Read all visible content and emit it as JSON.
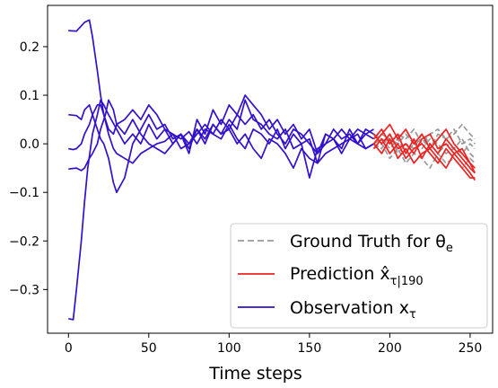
{
  "chart_data": {
    "type": "line",
    "xlabel": "Time steps",
    "ylabel": "",
    "title": "",
    "xlim": [
      -13,
      264
    ],
    "ylim": [
      -0.39,
      0.285
    ],
    "xticks": [
      0,
      50,
      100,
      150,
      200,
      250
    ],
    "yticks": [
      -0.3,
      -0.2,
      -0.1,
      0.0,
      0.1,
      0.2
    ],
    "xtick_labels": [
      "0",
      "50",
      "100",
      "150",
      "200",
      "250"
    ],
    "ytick_labels": [
      "−0.3",
      "−0.2",
      "−0.1",
      "0.0",
      "0.1",
      "0.2"
    ],
    "grid": false,
    "legend_position": "bottom-right",
    "colors": {
      "ground_truth": "#999999",
      "prediction": "#ee2222",
      "observation": "#3311cc"
    },
    "legend": [
      {
        "label": "Ground Truth for θ",
        "sub": "e",
        "style": "dashed",
        "color_key": "ground_truth"
      },
      {
        "label": "Prediction x̂",
        "sub": "τ|190",
        "style": "solid",
        "color_key": "prediction"
      },
      {
        "label": "Observation x",
        "sub": "τ",
        "style": "solid",
        "color_key": "observation"
      }
    ],
    "observation_series": [
      {
        "x": [
          0,
          5,
          10,
          13,
          15,
          18,
          20,
          22,
          25,
          28,
          30,
          35,
          40,
          45,
          50,
          55,
          60,
          65,
          70,
          75,
          80,
          85,
          90,
          95,
          100,
          105,
          110,
          115,
          120,
          125,
          130,
          135,
          140,
          145,
          150,
          155,
          160,
          165,
          170,
          175,
          180,
          185,
          190
        ],
        "y": [
          0.233,
          0.232,
          0.25,
          0.255,
          0.22,
          0.15,
          0.1,
          0.06,
          0.02,
          -0.01,
          -0.02,
          -0.03,
          -0.04,
          -0.02,
          -0.01,
          0.0,
          0.005,
          0.02,
          0.01,
          0.025,
          0.0,
          0.03,
          0.02,
          0.01,
          0.04,
          0.01,
          -0.01,
          0.03,
          0.02,
          0.0,
          0.03,
          -0.01,
          0.02,
          0.0,
          0.01,
          -0.04,
          0.02,
          0.01,
          -0.01,
          0.03,
          0.0,
          0.02,
          0.01
        ]
      },
      {
        "x": [
          0,
          3,
          5,
          8,
          10,
          12,
          15,
          18,
          20,
          22,
          25,
          30,
          35,
          40,
          45,
          50,
          55,
          60,
          65,
          70,
          75,
          80,
          85,
          90,
          95,
          100,
          105,
          110,
          115,
          120,
          125,
          130,
          135,
          140,
          145,
          150,
          155,
          160,
          165,
          170,
          175,
          180,
          185,
          190
        ],
        "y": [
          -0.36,
          -0.362,
          -0.3,
          -0.2,
          -0.12,
          -0.05,
          0.02,
          0.06,
          0.09,
          0.08,
          0.06,
          0.03,
          0.0,
          0.02,
          0.0,
          0.04,
          0.01,
          0.03,
          0.0,
          0.02,
          -0.01,
          0.03,
          0.01,
          0.04,
          0.02,
          0.05,
          0.03,
          0.09,
          0.05,
          0.04,
          0.02,
          0.01,
          0.03,
          -0.01,
          0.0,
          -0.07,
          -0.01,
          0.0,
          0.01,
          -0.02,
          0.01,
          0.02,
          -0.01,
          0.0
        ]
      },
      {
        "x": [
          0,
          5,
          8,
          10,
          13,
          15,
          18,
          20,
          22,
          25,
          28,
          30,
          35,
          40,
          45,
          50,
          55,
          60,
          65,
          70,
          75,
          80,
          85,
          90,
          95,
          100,
          105,
          110,
          115,
          120,
          125,
          130,
          135,
          140,
          145,
          150,
          155,
          160,
          165,
          170,
          175,
          180,
          185,
          190
        ],
        "y": [
          0.06,
          0.058,
          0.05,
          0.07,
          0.08,
          0.06,
          0.03,
          0.01,
          0.0,
          -0.03,
          -0.08,
          -0.1,
          -0.07,
          0.0,
          0.03,
          0.06,
          0.03,
          0.04,
          0.01,
          0.02,
          -0.02,
          0.05,
          0.02,
          0.07,
          0.04,
          0.08,
          0.06,
          0.1,
          0.08,
          0.06,
          0.03,
          0.05,
          0.02,
          0.04,
          0.01,
          0.03,
          -0.02,
          0.02,
          0.01,
          0.03,
          0.01,
          0.03,
          0.02,
          0.03
        ]
      },
      {
        "x": [
          0,
          3,
          5,
          8,
          10,
          13,
          15,
          18,
          20,
          23,
          25,
          28,
          30,
          35,
          40,
          45,
          50,
          55,
          60,
          65,
          70,
          75,
          80,
          85,
          90,
          95,
          100,
          105,
          110,
          115,
          120,
          125,
          130,
          135,
          140,
          145,
          150,
          155,
          160,
          165,
          170,
          175,
          180,
          185,
          190
        ],
        "y": [
          -0.01,
          -0.012,
          -0.01,
          0.0,
          0.02,
          0.04,
          0.06,
          0.08,
          0.08,
          0.05,
          0.03,
          0.02,
          0.04,
          0.05,
          0.07,
          0.05,
          0.08,
          0.06,
          0.03,
          0.02,
          -0.01,
          0.0,
          0.02,
          0.04,
          0.02,
          0.05,
          0.03,
          0.06,
          0.04,
          0.06,
          0.03,
          0.05,
          0.02,
          0.0,
          0.03,
          0.02,
          0.0,
          -0.02,
          0.0,
          0.03,
          0.01,
          0.02,
          0.0,
          0.03,
          0.02
        ]
      },
      {
        "x": [
          0,
          5,
          8,
          10,
          13,
          15,
          18,
          20,
          23,
          25,
          28,
          30,
          35,
          40,
          45,
          50,
          55,
          60,
          65,
          70,
          75,
          80,
          85,
          90,
          95,
          100,
          105,
          110,
          115,
          120,
          125,
          130,
          135,
          140,
          145,
          150,
          155,
          160,
          165,
          170,
          175,
          180,
          185,
          190
        ],
        "y": [
          -0.052,
          -0.05,
          -0.055,
          -0.05,
          -0.03,
          -0.02,
          0.0,
          0.03,
          0.06,
          0.09,
          0.07,
          0.04,
          0.02,
          0.05,
          0.02,
          0.0,
          -0.01,
          -0.02,
          0.0,
          0.02,
          0.0,
          0.03,
          0.0,
          0.04,
          0.02,
          0.03,
          0.0,
          0.02,
          -0.01,
          -0.03,
          0.01,
          0.0,
          -0.02,
          -0.05,
          -0.01,
          -0.03,
          -0.04,
          -0.02,
          -0.01,
          0.0,
          0.01,
          0.0,
          -0.01,
          0.0
        ]
      }
    ],
    "prediction_series": [
      {
        "x": [
          190,
          195,
          200,
          205,
          210,
          215,
          220,
          225,
          230,
          235,
          240,
          245,
          250,
          253
        ],
        "y": [
          0.01,
          0.03,
          0.0,
          0.02,
          -0.02,
          0.01,
          -0.03,
          0.0,
          -0.02,
          0.01,
          -0.01,
          -0.03,
          -0.05,
          -0.06
        ]
      },
      {
        "x": [
          190,
          195,
          200,
          205,
          210,
          215,
          220,
          225,
          230,
          235,
          240,
          245,
          250,
          253
        ],
        "y": [
          0.0,
          0.02,
          0.04,
          0.01,
          0.03,
          0.0,
          0.02,
          -0.01,
          0.01,
          0.03,
          0.0,
          -0.02,
          -0.04,
          -0.05
        ]
      },
      {
        "x": [
          190,
          195,
          200,
          205,
          210,
          215,
          220,
          225,
          230,
          235,
          240,
          245,
          250,
          253
        ],
        "y": [
          -0.01,
          0.01,
          -0.02,
          0.0,
          -0.03,
          -0.01,
          0.0,
          -0.02,
          -0.04,
          -0.01,
          -0.03,
          -0.05,
          -0.07,
          -0.07
        ]
      },
      {
        "x": [
          190,
          195,
          200,
          205,
          210,
          215,
          220,
          225,
          230,
          235,
          240,
          245,
          250,
          253
        ],
        "y": [
          0.02,
          0.0,
          0.02,
          -0.01,
          0.0,
          -0.02,
          0.01,
          0.02,
          -0.01,
          0.0,
          -0.02,
          -0.01,
          -0.04,
          -0.06
        ]
      },
      {
        "x": [
          190,
          195,
          200,
          205,
          210,
          215,
          220,
          225,
          230,
          235,
          240,
          245,
          250,
          253
        ],
        "y": [
          0.0,
          -0.02,
          0.01,
          -0.03,
          -0.01,
          -0.04,
          -0.02,
          -0.01,
          -0.03,
          -0.05,
          -0.02,
          -0.04,
          -0.06,
          -0.075
        ]
      }
    ],
    "ground_truth_series": [
      {
        "x": [
          190,
          195,
          200,
          205,
          210,
          215,
          220,
          225,
          230,
          235,
          240,
          245,
          250,
          253
        ],
        "y": [
          0.01,
          0.02,
          0.01,
          0.0,
          0.02,
          0.0,
          0.01,
          -0.01,
          0.02,
          0.01,
          0.03,
          0.0,
          0.01,
          0.0
        ]
      },
      {
        "x": [
          190,
          195,
          200,
          205,
          210,
          215,
          220,
          225,
          230,
          235,
          240,
          245,
          250,
          253
        ],
        "y": [
          0.0,
          -0.01,
          0.02,
          -0.02,
          0.0,
          -0.01,
          0.02,
          0.0,
          -0.02,
          0.0,
          -0.01,
          0.01,
          -0.02,
          -0.03
        ]
      },
      {
        "x": [
          190,
          195,
          200,
          205,
          210,
          215,
          220,
          225,
          230,
          235,
          240,
          245,
          250,
          253
        ],
        "y": [
          -0.01,
          0.0,
          -0.03,
          -0.01,
          -0.04,
          -0.02,
          -0.03,
          -0.05,
          -0.02,
          -0.04,
          -0.03,
          -0.05,
          -0.03,
          -0.04
        ]
      },
      {
        "x": [
          190,
          195,
          200,
          205,
          210,
          215,
          220,
          225,
          230,
          235,
          240,
          245,
          250,
          253
        ],
        "y": [
          0.02,
          0.01,
          0.0,
          0.02,
          0.01,
          0.03,
          0.0,
          0.02,
          0.03,
          0.01,
          0.02,
          0.04,
          0.02,
          0.01
        ]
      },
      {
        "x": [
          190,
          195,
          200,
          205,
          210,
          215,
          220,
          225,
          230,
          235,
          240,
          245,
          250,
          253
        ],
        "y": [
          0.0,
          0.01,
          -0.01,
          0.01,
          -0.02,
          0.0,
          -0.01,
          0.01,
          0.0,
          -0.02,
          -0.01,
          -0.02,
          0.0,
          -0.01
        ]
      }
    ]
  }
}
